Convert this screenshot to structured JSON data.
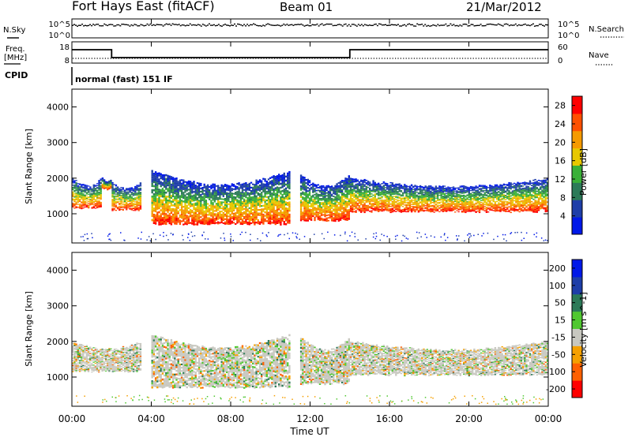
{
  "header": {
    "station": "Fort Hays East (fitACF)",
    "beam": "Beam 01",
    "date": "21/Mar/2012"
  },
  "noise_panel": {
    "left_label": "N.Sky",
    "right_label": "N.Search",
    "left_ticks": [
      "10^5",
      "10^0"
    ],
    "right_ticks": [
      "10^5",
      "10^0"
    ]
  },
  "freq_panel": {
    "left_label_line1": "Freq.",
    "left_label_line2": "[MHz]",
    "right_label": "Nave",
    "left_ticks": [
      "18",
      "8"
    ],
    "right_ticks": [
      "60",
      "0"
    ],
    "freq_segments_hours": [
      [
        0,
        2,
        "high"
      ],
      [
        2,
        14,
        "low"
      ],
      [
        14,
        24,
        "high"
      ]
    ]
  },
  "cpid_panel": {
    "label": "CPID",
    "text": "normal (fast) 151 IF"
  },
  "x_axis": {
    "label": "Time UT",
    "ticks": [
      "00:00",
      "04:00",
      "08:00",
      "12:00",
      "16:00",
      "20:00",
      "00:00"
    ]
  },
  "chart_data": [
    {
      "type": "heatmap",
      "name": "power",
      "x_range_hours": [
        0,
        24
      ],
      "ylabel": "Slant Range [km]",
      "ylim": [
        180,
        4500
      ],
      "yticks": [
        1000,
        2000,
        3000,
        4000
      ],
      "colorbar": {
        "label": "Power [dB]",
        "ticks": [
          4,
          8,
          12,
          16,
          20,
          24,
          28
        ],
        "range": [
          0,
          30
        ],
        "colors": [
          "#0018e8",
          "#1e3ea8",
          "#2c7a58",
          "#3ab038",
          "#e8c800",
          "#f59a00",
          "#ff5000",
          "#ff0000"
        ]
      },
      "echo_regions": [
        {
          "t0": 0.0,
          "t1": 1.5,
          "r_lo": 1150,
          "r_hi": 2000
        },
        {
          "t0": 1.5,
          "t1": 2.0,
          "r_lo": 1700,
          "r_hi": 2000
        },
        {
          "t0": 2.0,
          "t1": 3.5,
          "r_lo": 1100,
          "r_hi": 1900
        },
        {
          "t0": 4.0,
          "t1": 11.0,
          "r_lo": 700,
          "r_hi": 2200
        },
        {
          "t0": 11.5,
          "t1": 14.0,
          "r_lo": 800,
          "r_hi": 2100
        },
        {
          "t0": 14.0,
          "t1": 24.0,
          "r_lo": 1050,
          "r_hi": 2000
        }
      ]
    },
    {
      "type": "heatmap",
      "name": "velocity",
      "x_range_hours": [
        0,
        24
      ],
      "ylabel": "Slant Range [km]",
      "ylim": [
        180,
        4500
      ],
      "yticks": [
        1000,
        2000,
        3000,
        4000
      ],
      "colorbar": {
        "label": "Velocity [m s^-1]",
        "ticks": [
          "200",
          "100",
          "50",
          "15",
          "-15",
          "-50",
          "-100",
          "-200"
        ],
        "colors": [
          "#0018e8",
          "#1e3ea8",
          "#2c7a58",
          "#50c830",
          "#c8c8c0",
          "#f5a000",
          "#ff6000",
          "#ff0000"
        ]
      },
      "echo_regions": [
        {
          "t0": 0.0,
          "t1": 3.5,
          "r_lo": 1150,
          "r_hi": 2000
        },
        {
          "t0": 4.0,
          "t1": 11.0,
          "r_lo": 700,
          "r_hi": 2200
        },
        {
          "t0": 11.5,
          "t1": 14.0,
          "r_lo": 800,
          "r_hi": 2100
        },
        {
          "t0": 14.0,
          "t1": 24.0,
          "r_lo": 1050,
          "r_hi": 2000
        }
      ]
    }
  ]
}
